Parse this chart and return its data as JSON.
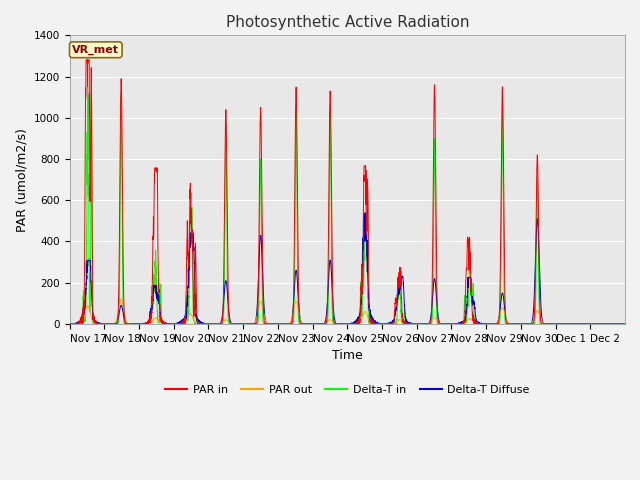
{
  "title": "Photosynthetic Active Radiation",
  "ylabel": "PAR (umol/m2/s)",
  "xlabel": "Time",
  "annotation": "VR_met",
  "ylim": [
    0,
    1400
  ],
  "yticks": [
    0,
    200,
    400,
    600,
    800,
    1000,
    1200,
    1400
  ],
  "xtick_labels": [
    "Nov 17",
    "Nov 18",
    "Nov 19",
    "Nov 20",
    "Nov 21",
    "Nov 22",
    "Nov 23",
    "Nov 24",
    "Nov 25",
    "Nov 26",
    "Nov 27",
    "Nov 28",
    "Nov 29",
    "Nov 30",
    "Dec 1",
    "Dec 2"
  ],
  "colors": {
    "PAR_in": "#FF0000",
    "PAR_out": "#FFA500",
    "Delta_T_in": "#00FF00",
    "Delta_T_Diffuse": "#0000CC"
  },
  "legend_labels": [
    "PAR in",
    "PAR out",
    "Delta-T in",
    "Delta-T Diffuse"
  ],
  "bg_color": "#E8E8E8",
  "grid_color": "#FFFFFF",
  "fig_bg": "#F2F2F2",
  "title_fontsize": 11,
  "label_fontsize": 9,
  "tick_fontsize": 7.5,
  "days": [
    {
      "par_in": 1220,
      "par_out": 90,
      "delta_t": 1110,
      "diffuse": 280,
      "jagged": true
    },
    {
      "par_in": 1190,
      "par_out": 120,
      "delta_t": 1110,
      "diffuse": 90,
      "jagged": false
    },
    {
      "par_in": 720,
      "par_out": 30,
      "delta_t": 340,
      "diffuse": 170,
      "jagged": true
    },
    {
      "par_in": 650,
      "par_out": 50,
      "delta_t": 540,
      "diffuse": 400,
      "jagged": true
    },
    {
      "par_in": 1040,
      "par_out": 20,
      "delta_t": 960,
      "diffuse": 210,
      "jagged": false
    },
    {
      "par_in": 1050,
      "par_out": 110,
      "delta_t": 800,
      "diffuse": 430,
      "jagged": false
    },
    {
      "par_in": 1150,
      "par_out": 110,
      "delta_t": 1050,
      "diffuse": 260,
      "jagged": false
    },
    {
      "par_in": 1130,
      "par_out": 20,
      "delta_t": 1030,
      "diffuse": 310,
      "jagged": false
    },
    {
      "par_in": 730,
      "par_out": 60,
      "delta_t": 540,
      "diffuse": 490,
      "jagged": true
    },
    {
      "par_in": 260,
      "par_out": 20,
      "delta_t": 210,
      "diffuse": 210,
      "jagged": true
    },
    {
      "par_in": 1160,
      "par_out": 30,
      "delta_t": 900,
      "diffuse": 220,
      "jagged": false
    },
    {
      "par_in": 400,
      "par_out": 25,
      "delta_t": 320,
      "diffuse": 205,
      "jagged": true
    },
    {
      "par_in": 1150,
      "par_out": 80,
      "delta_t": 1060,
      "diffuse": 150,
      "jagged": false
    },
    {
      "par_in": 820,
      "par_out": 65,
      "delta_t": 710,
      "diffuse": 510,
      "jagged": false
    },
    {
      "par_in": 0,
      "par_out": 0,
      "delta_t": 0,
      "diffuse": 0,
      "jagged": false
    },
    {
      "par_in": 0,
      "par_out": 0,
      "delta_t": 0,
      "diffuse": 0,
      "jagged": false
    }
  ]
}
